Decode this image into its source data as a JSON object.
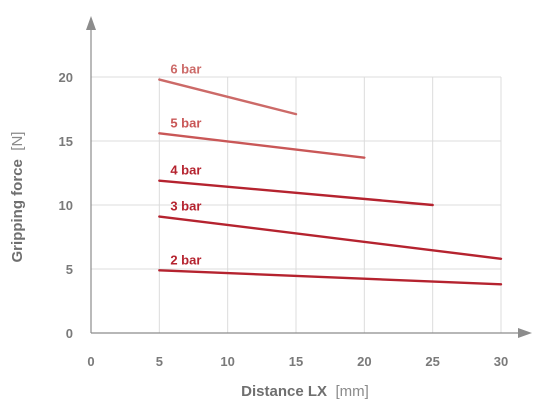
{
  "chart_data": {
    "type": "line",
    "xlabel": "Distance LX",
    "xunit": "[mm]",
    "ylabel": "Gripping force",
    "yunit": "[N]",
    "xlim": [
      0,
      30
    ],
    "ylim": [
      0,
      20
    ],
    "x_ticks": [
      0,
      5,
      10,
      15,
      20,
      25,
      30
    ],
    "y_ticks": [
      0,
      5,
      10,
      15,
      20
    ],
    "grid": true,
    "series": [
      {
        "name": "2 bar",
        "color": "#b5232f",
        "points": [
          [
            5,
            4.9
          ],
          [
            30,
            3.8
          ]
        ]
      },
      {
        "name": "3 bar",
        "color": "#b5232f",
        "points": [
          [
            5,
            9.1
          ],
          [
            30,
            5.8
          ]
        ]
      },
      {
        "name": "4 bar",
        "color": "#b5232f",
        "points": [
          [
            5,
            11.9
          ],
          [
            25,
            10.0
          ]
        ]
      },
      {
        "name": "5 bar",
        "color": "#c95757",
        "points": [
          [
            5,
            15.6
          ],
          [
            20,
            13.7
          ]
        ]
      },
      {
        "name": "6 bar",
        "color": "#cc6a68",
        "points": [
          [
            5,
            19.8
          ],
          [
            15,
            17.1
          ]
        ]
      }
    ]
  }
}
